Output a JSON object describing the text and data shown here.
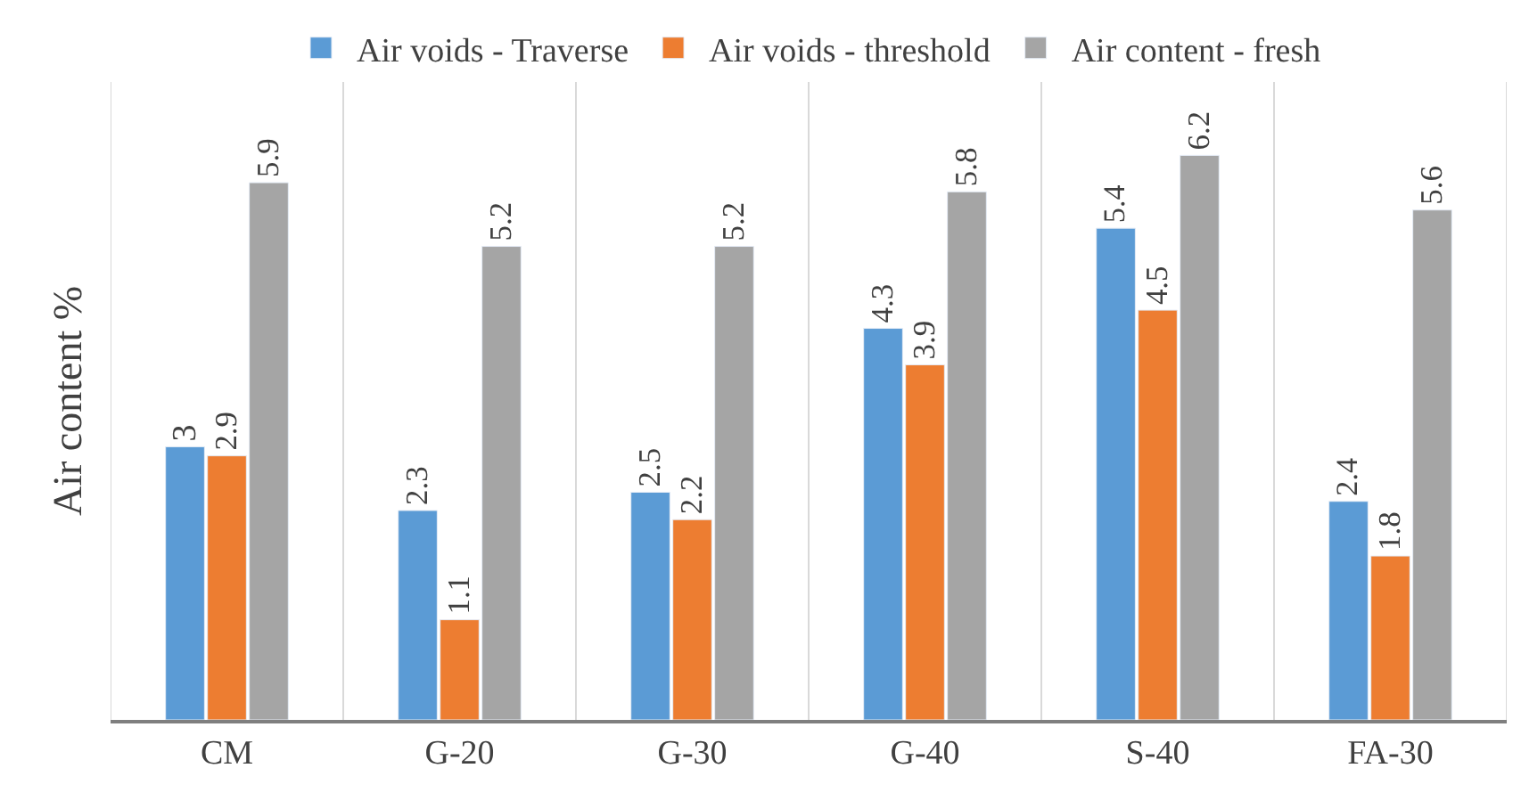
{
  "chart_data": {
    "type": "bar",
    "ylabel": "Air content %",
    "categories": [
      "CM",
      "G-20",
      "G-30",
      "G-40",
      "S-40",
      "FA-30"
    ],
    "series": [
      {
        "name": "Air voids - Traverse",
        "color": "#5b9bd5",
        "values": [
          3,
          2.3,
          2.5,
          4.3,
          5.4,
          2.4
        ]
      },
      {
        "name": "Air voids - threshold",
        "color": "#ed7d31",
        "values": [
          2.9,
          1.1,
          2.2,
          3.9,
          4.5,
          1.8
        ]
      },
      {
        "name": "Air content - fresh",
        "color": "#a5a5a5",
        "values": [
          5.9,
          5.2,
          5.2,
          5.8,
          6.2,
          5.6
        ]
      }
    ],
    "data_labels": true,
    "grid": "x",
    "legend": "top",
    "tick_labels": "x"
  }
}
